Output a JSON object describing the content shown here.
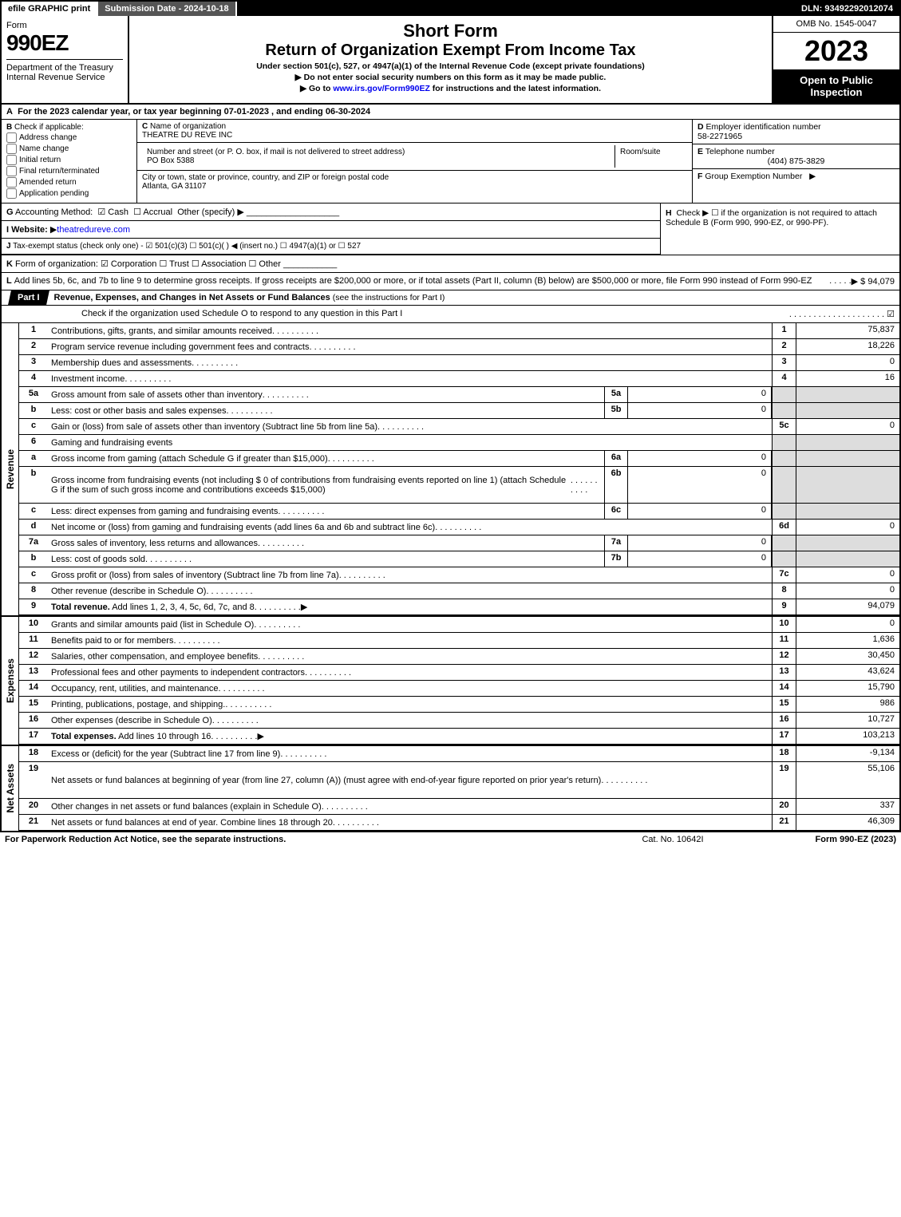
{
  "topbar": {
    "efile": "efile GRAPHIC print",
    "subdate_label": "Submission Date - 2024-10-18",
    "dln": "DLN: 93492292012074"
  },
  "header": {
    "form_word": "Form",
    "form_num": "990EZ",
    "dept": "Department of the Treasury\nInternal Revenue Service",
    "short_form": "Short Form",
    "title": "Return of Organization Exempt From Income Tax",
    "under": "Under section 501(c), 527, or 4947(a)(1) of the Internal Revenue Code (except private foundations)",
    "warn": "Do not enter social security numbers on this form as it may be made public.",
    "goto_pre": "Go to ",
    "goto_link": "www.irs.gov/Form990EZ",
    "goto_post": " for instructions and the latest information.",
    "omb": "OMB No. 1545-0047",
    "year": "2023",
    "open": "Open to Public Inspection"
  },
  "A": "For the 2023 calendar year, or tax year beginning 07-01-2023 , and ending 06-30-2024",
  "B": {
    "label": "Check if applicable:",
    "opts": [
      "Address change",
      "Name change",
      "Initial return",
      "Final return/terminated",
      "Amended return",
      "Application pending"
    ]
  },
  "C": {
    "label": "Name of organization",
    "val": "THEATRE DU REVE INC",
    "addr_label": "Number and street (or P. O. box, if mail is not delivered to street address)",
    "addr": "PO Box 5388",
    "room_label": "Room/suite",
    "city_label": "City or town, state or province, country, and ZIP or foreign postal code",
    "city": "Atlanta, GA  31107"
  },
  "D": {
    "label": "Employer identification number",
    "val": "58-2271965"
  },
  "E": {
    "label": "Telephone number",
    "val": "(404) 875-3829"
  },
  "F": {
    "label": "Group Exemption Number",
    "arrow": "▶"
  },
  "G": {
    "label": "Accounting Method:",
    "cash": "Cash",
    "accrual": "Accrual",
    "other": "Other (specify)"
  },
  "H": "Check ▶  ☐  if the organization is not required to attach Schedule B (Form 990, 990-EZ, or 990-PF).",
  "I": {
    "label": "Website:",
    "val": "theatredureve.com"
  },
  "J": "Tax-exempt status (check only one) - ☑ 501(c)(3)  ☐ 501(c)( )  ◀ (insert no.)  ☐ 4947(a)(1) or  ☐ 527",
  "K": "Form of organization:  ☑ Corporation  ☐ Trust  ☐ Association  ☐ Other",
  "L": {
    "text": "Add lines 5b, 6c, and 7b to line 9 to determine gross receipts. If gross receipts are $200,000 or more, or if total assets (Part II, column (B) below) are $500,000 or more, file Form 990 instead of Form 990-EZ",
    "val": "▶ $ 94,079"
  },
  "PartI": {
    "tag": "Part I",
    "title": "Revenue, Expenses, and Changes in Net Assets or Fund Balances",
    "sub": "(see the instructions for Part I)",
    "check": "Check if the organization used Schedule O to respond to any question in this Part I"
  },
  "revenue": [
    {
      "n": "1",
      "d": "Contributions, gifts, grants, and similar amounts received",
      "r": "1",
      "v": "75,837"
    },
    {
      "n": "2",
      "d": "Program service revenue including government fees and contracts",
      "r": "2",
      "v": "18,226"
    },
    {
      "n": "3",
      "d": "Membership dues and assessments",
      "r": "3",
      "v": "0"
    },
    {
      "n": "4",
      "d": "Investment income",
      "r": "4",
      "v": "16"
    },
    {
      "n": "5a",
      "d": "Gross amount from sale of assets other than inventory",
      "mn": "5a",
      "mv": "0",
      "shade": true
    },
    {
      "n": "b",
      "d": "Less: cost or other basis and sales expenses",
      "mn": "5b",
      "mv": "0",
      "shade": true
    },
    {
      "n": "c",
      "d": "Gain or (loss) from sale of assets other than inventory (Subtract line 5b from line 5a)",
      "r": "5c",
      "v": "0"
    },
    {
      "n": "6",
      "d": "Gaming and fundraising events",
      "plain": true
    },
    {
      "n": "a",
      "d": "Gross income from gaming (attach Schedule G if greater than $15,000)",
      "mn": "6a",
      "mv": "0",
      "shade": true
    },
    {
      "n": "b",
      "d": "Gross income from fundraising events (not including $ 0        of contributions from fundraising events reported on line 1) (attach Schedule G if the sum of such gross income and contributions exceeds $15,000)",
      "mn": "6b",
      "mv": "0",
      "shade": true,
      "tall": true
    },
    {
      "n": "c",
      "d": "Less: direct expenses from gaming and fundraising events",
      "mn": "6c",
      "mv": "0",
      "shade": true
    },
    {
      "n": "d",
      "d": "Net income or (loss) from gaming and fundraising events (add lines 6a and 6b and subtract line 6c)",
      "r": "6d",
      "v": "0"
    },
    {
      "n": "7a",
      "d": "Gross sales of inventory, less returns and allowances",
      "mn": "7a",
      "mv": "0",
      "shade": true
    },
    {
      "n": "b",
      "d": "Less: cost of goods sold",
      "mn": "7b",
      "mv": "0",
      "shade": true
    },
    {
      "n": "c",
      "d": "Gross profit or (loss) from sales of inventory (Subtract line 7b from line 7a)",
      "r": "7c",
      "v": "0"
    },
    {
      "n": "8",
      "d": "Other revenue (describe in Schedule O)",
      "r": "8",
      "v": "0"
    },
    {
      "n": "9",
      "d": "Total revenue. Add lines 1, 2, 3, 4, 5c, 6d, 7c, and 8",
      "r": "9",
      "v": "94,079",
      "bold": true,
      "arrow": true
    }
  ],
  "expenses": [
    {
      "n": "10",
      "d": "Grants and similar amounts paid (list in Schedule O)",
      "r": "10",
      "v": "0"
    },
    {
      "n": "11",
      "d": "Benefits paid to or for members",
      "r": "11",
      "v": "1,636"
    },
    {
      "n": "12",
      "d": "Salaries, other compensation, and employee benefits",
      "r": "12",
      "v": "30,450"
    },
    {
      "n": "13",
      "d": "Professional fees and other payments to independent contractors",
      "r": "13",
      "v": "43,624"
    },
    {
      "n": "14",
      "d": "Occupancy, rent, utilities, and maintenance",
      "r": "14",
      "v": "15,790"
    },
    {
      "n": "15",
      "d": "Printing, publications, postage, and shipping.",
      "r": "15",
      "v": "986"
    },
    {
      "n": "16",
      "d": "Other expenses (describe in Schedule O)",
      "r": "16",
      "v": "10,727"
    },
    {
      "n": "17",
      "d": "Total expenses. Add lines 10 through 16",
      "r": "17",
      "v": "103,213",
      "bold": true,
      "arrow": true
    }
  ],
  "netassets": [
    {
      "n": "18",
      "d": "Excess or (deficit) for the year (Subtract line 17 from line 9)",
      "r": "18",
      "v": "-9,134"
    },
    {
      "n": "19",
      "d": "Net assets or fund balances at beginning of year (from line 27, column (A)) (must agree with end-of-year figure reported on prior year's return)",
      "r": "19",
      "v": "55,106",
      "tall": true
    },
    {
      "n": "20",
      "d": "Other changes in net assets or fund balances (explain in Schedule O)",
      "r": "20",
      "v": "337"
    },
    {
      "n": "21",
      "d": "Net assets or fund balances at end of year. Combine lines 18 through 20",
      "r": "21",
      "v": "46,309"
    }
  ],
  "sections": {
    "rev": "Revenue",
    "exp": "Expenses",
    "na": "Net Assets"
  },
  "footer": {
    "l": "For Paperwork Reduction Act Notice, see the separate instructions.",
    "m": "Cat. No. 10642I",
    "r": "Form 990-EZ (2023)"
  }
}
